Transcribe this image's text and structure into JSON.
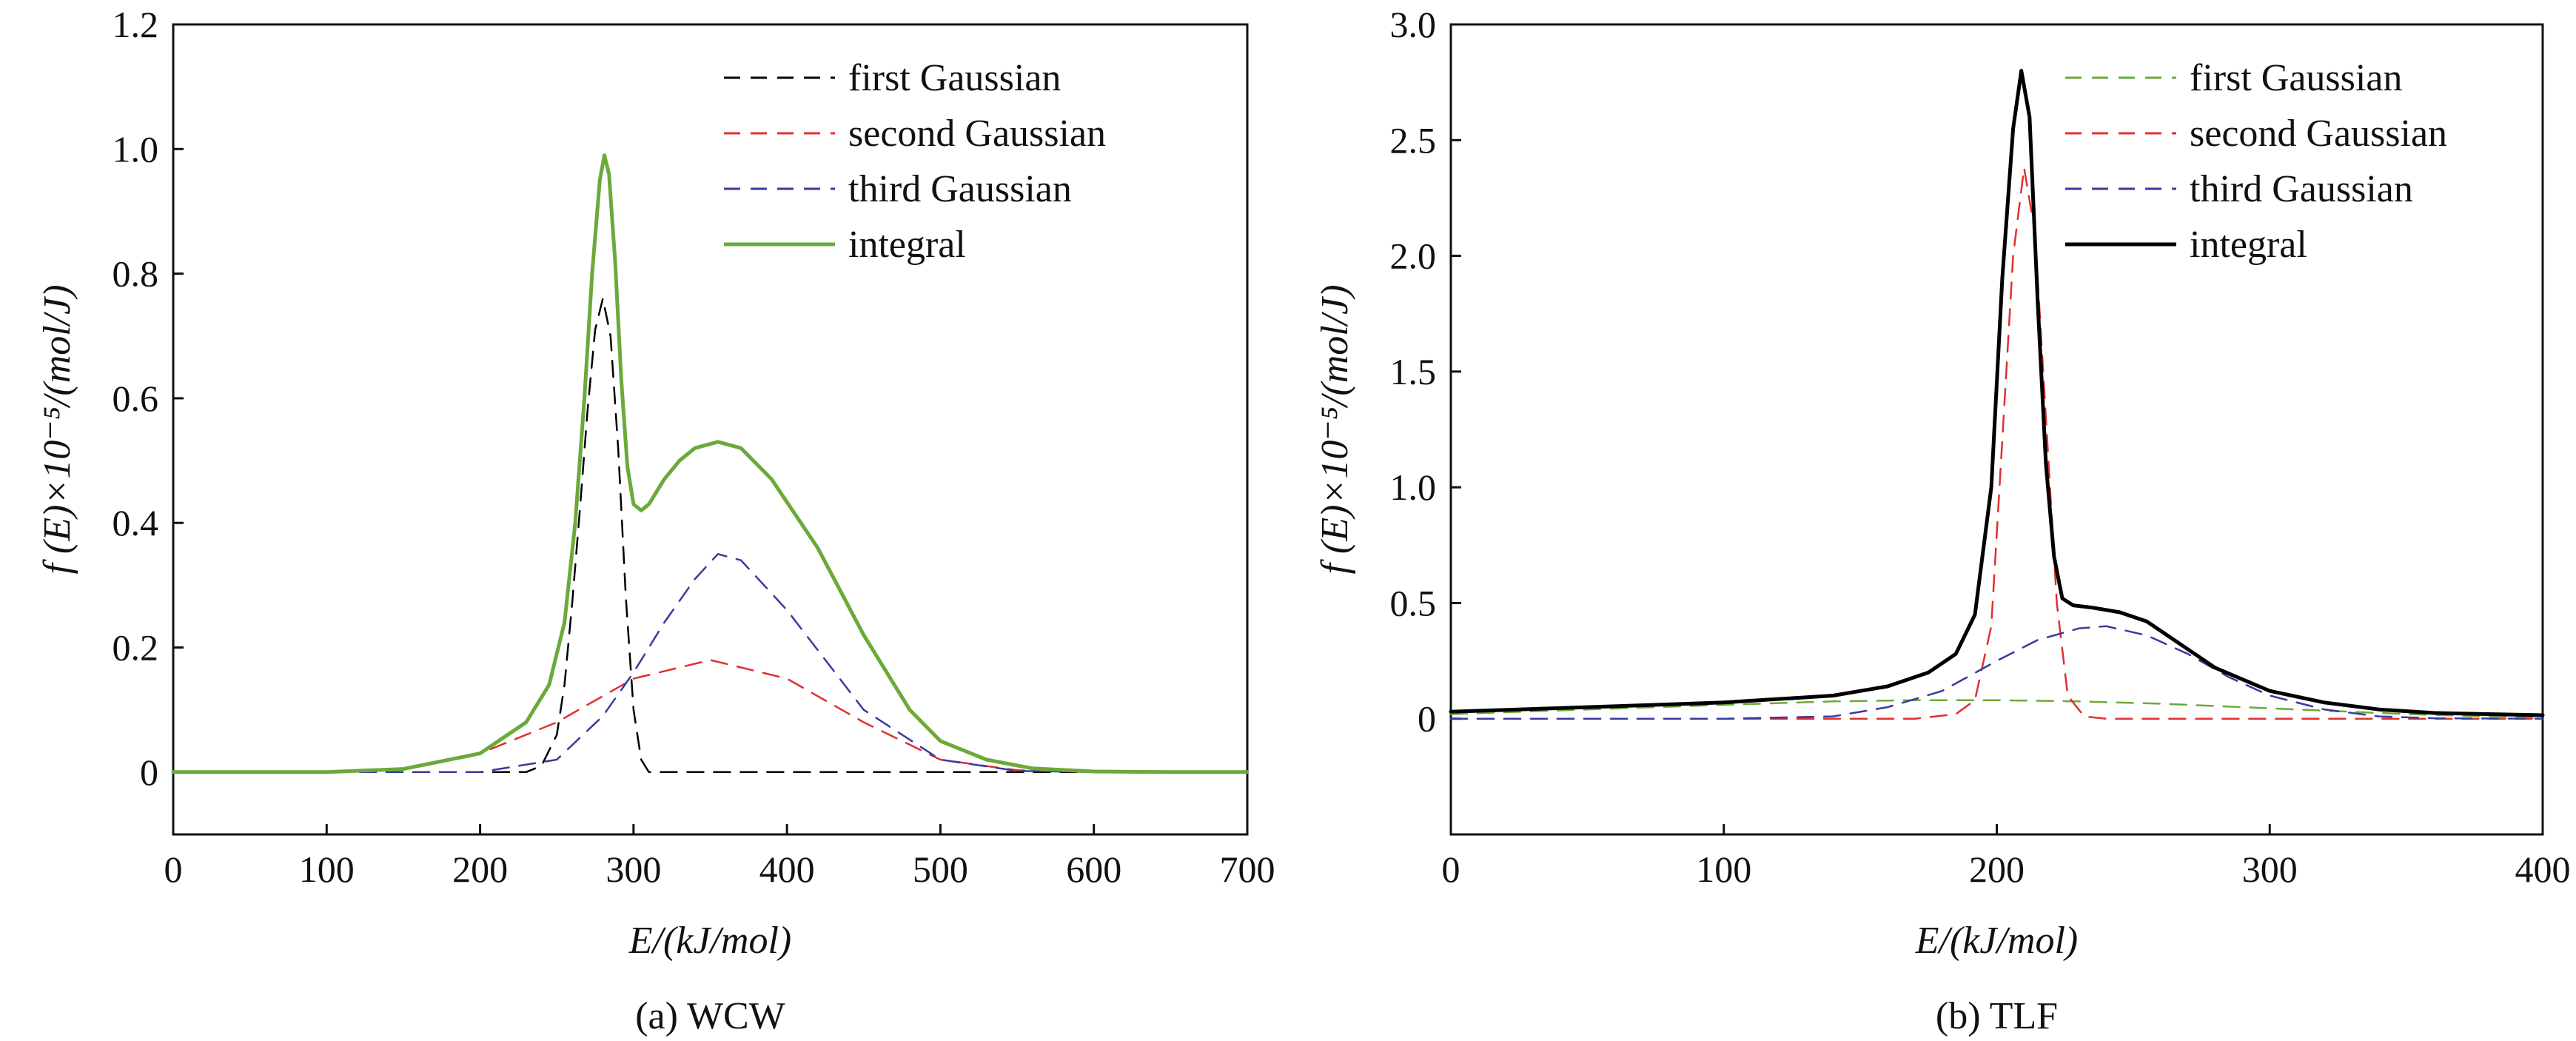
{
  "chart_data": [
    {
      "type": "line",
      "caption": "(a) WCW",
      "xlabel": "E/(kJ/mol)",
      "ylabel": "f (E)×10⁻⁵/(mol/J)",
      "xlim": [
        0,
        700
      ],
      "ylim": [
        -0.1,
        1.2
      ],
      "xticks": [
        "0",
        "100",
        "200",
        "300",
        "400",
        "500",
        "600",
        "700"
      ],
      "yticks": [
        "0",
        "0.2",
        "0.4",
        "0.6",
        "0.8",
        "1.0",
        "1.2"
      ],
      "legend_position": "top-right",
      "grid": false,
      "series": [
        {
          "name": "first Gaussian",
          "color": "#000000",
          "style": "dashed",
          "x": [
            0,
            100,
            200,
            230,
            240,
            250,
            255,
            260,
            265,
            270,
            275,
            280,
            285,
            290,
            295,
            300,
            305,
            310,
            320,
            400,
            500,
            600,
            700
          ],
          "y": [
            0,
            0,
            0,
            0,
            0.01,
            0.06,
            0.14,
            0.27,
            0.42,
            0.58,
            0.71,
            0.76,
            0.7,
            0.52,
            0.28,
            0.1,
            0.02,
            0,
            0,
            0,
            0,
            0,
            0
          ]
        },
        {
          "name": "second Gaussian",
          "color": "#e03030",
          "style": "dashed",
          "x": [
            0,
            100,
            150,
            200,
            250,
            300,
            350,
            400,
            450,
            500,
            550,
            600,
            700
          ],
          "y": [
            0,
            0,
            0.005,
            0.03,
            0.08,
            0.15,
            0.18,
            0.15,
            0.08,
            0.02,
            0.003,
            0,
            0
          ]
        },
        {
          "name": "third Gaussian",
          "color": "#3a3aa0",
          "style": "dashed",
          "x": [
            0,
            100,
            200,
            250,
            280,
            300,
            320,
            340,
            355,
            370,
            400,
            450,
            500,
            550,
            600,
            700
          ],
          "y": [
            0,
            0,
            0,
            0.02,
            0.09,
            0.16,
            0.24,
            0.31,
            0.35,
            0.34,
            0.26,
            0.1,
            0.02,
            0.002,
            0,
            0
          ]
        },
        {
          "name": "integral",
          "color": "#6aaa3a",
          "style": "solid",
          "x": [
            0,
            100,
            150,
            200,
            230,
            245,
            255,
            262,
            268,
            273,
            278,
            281,
            284,
            288,
            292,
            296,
            300,
            305,
            310,
            320,
            330,
            340,
            355,
            370,
            390,
            420,
            450,
            480,
            500,
            530,
            560,
            600,
            650,
            700
          ],
          "y": [
            0,
            0,
            0.005,
            0.03,
            0.08,
            0.14,
            0.24,
            0.4,
            0.6,
            0.8,
            0.95,
            0.99,
            0.96,
            0.82,
            0.63,
            0.49,
            0.43,
            0.42,
            0.43,
            0.47,
            0.5,
            0.52,
            0.53,
            0.52,
            0.47,
            0.36,
            0.22,
            0.1,
            0.05,
            0.02,
            0.006,
            0.001,
            0,
            0
          ]
        }
      ]
    },
    {
      "type": "line",
      "caption": "(b) TLF",
      "xlabel": "E/(kJ/mol)",
      "ylabel": "f (E)×10⁻⁵/(mol/J)",
      "xlim": [
        0,
        400
      ],
      "ylim": [
        -0.5,
        3.0
      ],
      "xticks": [
        "0",
        "100",
        "200",
        "300",
        "400"
      ],
      "yticks": [
        "0",
        "0.5",
        "1.0",
        "1.5",
        "2.0",
        "2.5",
        "3.0"
      ],
      "legend_position": "top-right",
      "grid": false,
      "series": [
        {
          "name": "first Gaussian",
          "color": "#6aaa3a",
          "style": "dashed",
          "x": [
            0,
            50,
            100,
            140,
            170,
            200,
            230,
            260,
            290,
            320,
            350,
            380,
            400
          ],
          "y": [
            0.02,
            0.04,
            0.06,
            0.075,
            0.08,
            0.08,
            0.075,
            0.065,
            0.05,
            0.035,
            0.02,
            0.01,
            0.005
          ]
        },
        {
          "name": "second Gaussian",
          "color": "#e03030",
          "style": "dashed",
          "x": [
            0,
            100,
            170,
            185,
            192,
            198,
            202,
            206,
            210,
            214,
            218,
            222,
            226,
            232,
            240,
            300,
            400
          ],
          "y": [
            0,
            0,
            0,
            0.02,
            0.08,
            0.4,
            1.2,
            2.0,
            2.38,
            2.1,
            1.3,
            0.5,
            0.1,
            0.01,
            0,
            0,
            0
          ]
        },
        {
          "name": "third Gaussian",
          "color": "#3a3aa0",
          "style": "dashed",
          "x": [
            0,
            100,
            140,
            160,
            180,
            200,
            215,
            230,
            240,
            255,
            270,
            285,
            300,
            320,
            340,
            360,
            400
          ],
          "y": [
            0,
            0,
            0.01,
            0.05,
            0.12,
            0.25,
            0.34,
            0.39,
            0.4,
            0.36,
            0.28,
            0.18,
            0.1,
            0.04,
            0.01,
            0.002,
            0
          ]
        },
        {
          "name": "integral",
          "color": "#000000",
          "style": "solid",
          "x": [
            0,
            50,
            100,
            140,
            160,
            175,
            185,
            192,
            198,
            202,
            206,
            209,
            212,
            215,
            218,
            221,
            224,
            228,
            235,
            245,
            255,
            265,
            280,
            300,
            320,
            340,
            360,
            380,
            400
          ],
          "y": [
            0.03,
            0.05,
            0.07,
            0.1,
            0.14,
            0.2,
            0.28,
            0.45,
            1.0,
            1.9,
            2.55,
            2.8,
            2.6,
            1.8,
            1.1,
            0.7,
            0.52,
            0.49,
            0.48,
            0.46,
            0.42,
            0.34,
            0.22,
            0.12,
            0.07,
            0.04,
            0.025,
            0.02,
            0.015
          ]
        }
      ]
    }
  ]
}
